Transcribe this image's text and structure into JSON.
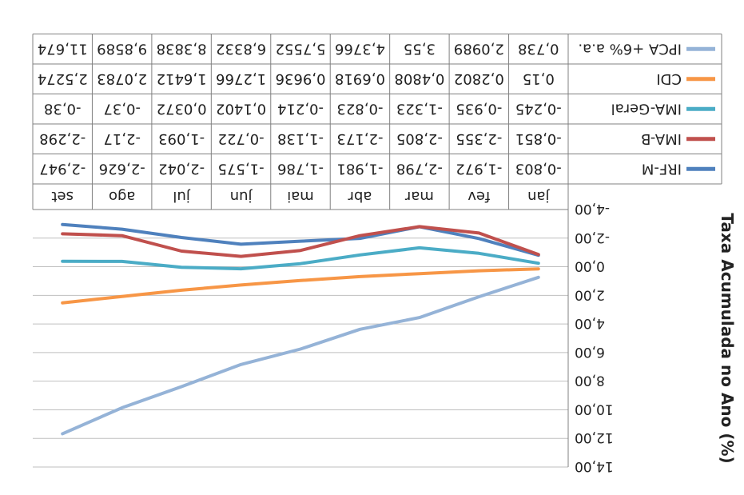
{
  "chart_data": {
    "type": "line",
    "ylabel": "Taxa Acumulada no Ano (%)",
    "ylim": [
      -4,
      14
    ],
    "y_ticks": [
      "-4,00",
      "-2,00",
      "0,00",
      "2,00",
      "4,00",
      "6,00",
      "8,00",
      "10,00",
      "12,00",
      "14,00"
    ],
    "categories": [
      "jan",
      "fev",
      "mar",
      "abr",
      "mai",
      "jun",
      "jul",
      "ago",
      "set"
    ],
    "grid": true,
    "legend": "data-table",
    "series": [
      {
        "name": "IRF-M",
        "color": "#4F81BD",
        "values": [
          -0.803,
          -1.972,
          -2.798,
          -1.981,
          -1.786,
          -1.575,
          -2.042,
          -2.626,
          -2.947
        ],
        "labels": [
          "-0,803",
          "-1,972",
          "-2,798",
          "-1,981",
          "-1,786",
          "-1,575",
          "-2,042",
          "-2,626",
          "-2,947"
        ]
      },
      {
        "name": "IMA-B",
        "color": "#C0504D",
        "values": [
          -0.851,
          -2.355,
          -2.805,
          -2.173,
          -1.138,
          -0.722,
          -1.093,
          -2.17,
          -2.298
        ],
        "labels": [
          "-0,851",
          "-2,355",
          "-2,805",
          "-2,173",
          "-1,138",
          "-0,722",
          "-1,093",
          "-2,17",
          "-2,298"
        ]
      },
      {
        "name": "IMA-Geral",
        "color": "#4BACC6",
        "values": [
          -0.245,
          -0.935,
          -1.323,
          -0.823,
          -0.214,
          0.1402,
          0.0372,
          -0.37,
          -0.38
        ],
        "labels": [
          "-0,245",
          "-0,935",
          "-1,323",
          "-0,823",
          "-0,214",
          "0,1402",
          "0,0372",
          "-0,37",
          "-0,38"
        ]
      },
      {
        "name": "CDI",
        "color": "#F79646",
        "values": [
          0.15,
          0.2802,
          0.4808,
          0.6918,
          0.9636,
          1.2766,
          1.6412,
          2.0783,
          2.5274
        ],
        "labels": [
          "0,15",
          "0,2802",
          "0,4808",
          "0,6918",
          "0,9636",
          "1,2766",
          "1,6412",
          "2,0783",
          "2,5274"
        ]
      },
      {
        "name": "IPCA +6% a.a.",
        "color": "#95B3D7",
        "values": [
          0.738,
          2.0989,
          3.55,
          4.3766,
          5.7552,
          6.8332,
          8.3838,
          9.8589,
          11.674
        ],
        "labels": [
          "0,738",
          "2,0989",
          "3,55",
          "4,3766",
          "5,7552",
          "6,8332",
          "8,3838",
          "9,8589",
          "11,674"
        ]
      }
    ]
  }
}
